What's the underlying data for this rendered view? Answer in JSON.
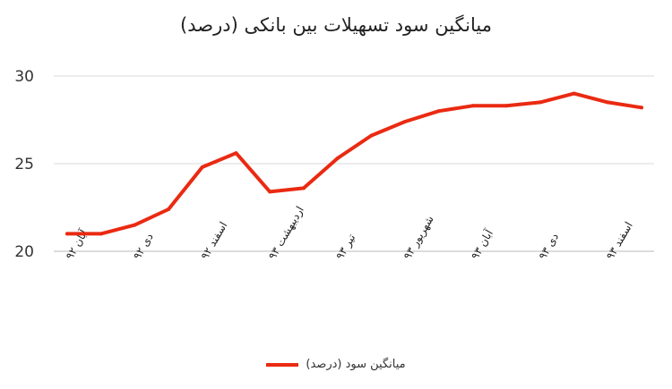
{
  "chart_data": {
    "type": "line",
    "title": "میانگین سود تسهیلات بین بانکی (درصد)",
    "xlabel": "",
    "ylabel": "",
    "ylim": [
      20,
      30
    ],
    "yticks": [
      20,
      25,
      30
    ],
    "grid": true,
    "legend_position": "bottom",
    "categories": [
      "آبان ۹۲",
      "",
      "دی ۹۲",
      "",
      "اسفند ۹۲",
      "",
      "اردیبهشت ۹۳",
      "",
      "تیر ۹۳",
      "",
      "شهریور ۹۳",
      "",
      "آبان ۹۳",
      "",
      "دی ۹۳",
      "",
      "اسفند ۹۳",
      ""
    ],
    "series": [
      {
        "name": "میانگین سود (درصد)",
        "color": "#ea2a12",
        "values": [
          21.0,
          21.0,
          21.5,
          22.4,
          24.8,
          25.6,
          23.4,
          23.6,
          25.3,
          26.6,
          27.4,
          28.0,
          28.3,
          28.3,
          28.5,
          29.0,
          28.5,
          28.2
        ]
      }
    ]
  }
}
